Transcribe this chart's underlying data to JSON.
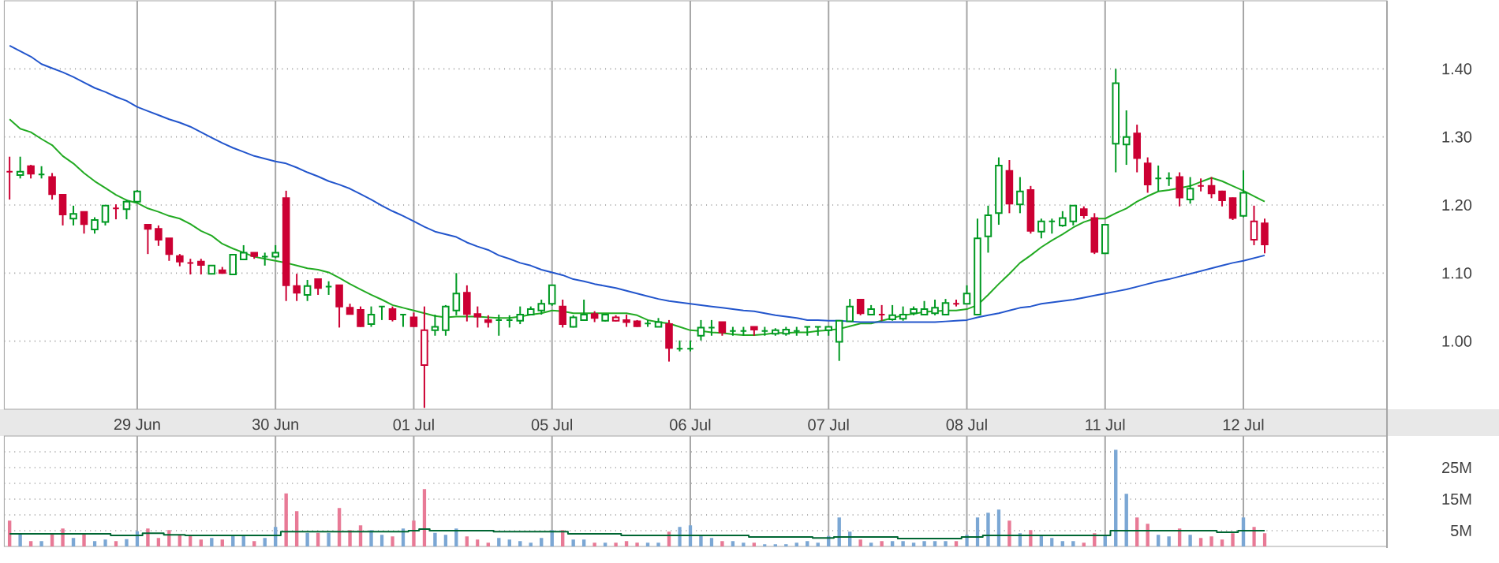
{
  "chart_data": [
    {
      "type": "candlestick",
      "categories": [
        null,
        null,
        null,
        null,
        null,
        null,
        null,
        null,
        null,
        null,
        null,
        null,
        "29 Jun",
        null,
        null,
        null,
        null,
        null,
        null,
        null,
        null,
        null,
        null,
        null,
        null,
        "30 Jun",
        null,
        null,
        null,
        null,
        null,
        null,
        null,
        null,
        null,
        null,
        null,
        null,
        "01 Jul",
        null,
        null,
        null,
        null,
        null,
        null,
        null,
        null,
        null,
        null,
        null,
        null,
        "05 Jul",
        null,
        null,
        null,
        null,
        null,
        null,
        null,
        null,
        null,
        null,
        null,
        null,
        "06 Jul",
        null,
        null,
        null,
        null,
        null,
        null,
        null,
        null,
        null,
        null,
        null,
        null,
        "07 Jul",
        null,
        null,
        null,
        null,
        null,
        null,
        null,
        null,
        null,
        null,
        null,
        null,
        "08 Jul",
        null,
        null,
        null,
        null,
        null,
        null,
        null,
        null,
        null,
        null,
        null,
        null,
        "11 Jul",
        null,
        null,
        null,
        null,
        null,
        null,
        null,
        null,
        null,
        null,
        null,
        null,
        "12 Jul",
        null,
        null,
        null,
        null,
        null,
        null,
        null,
        null,
        null,
        null,
        null,
        null,
        null
      ],
      "ohlc": [
        [
          1.249,
          1.271,
          1.208,
          1.249
        ],
        [
          1.244,
          1.271,
          1.239,
          1.249
        ],
        [
          1.257,
          1.259,
          1.239,
          1.246
        ],
        [
          1.245,
          1.257,
          1.239,
          1.245
        ],
        [
          1.241,
          1.247,
          1.208,
          1.216
        ],
        [
          1.215,
          1.216,
          1.17,
          1.186
        ],
        [
          1.18,
          1.199,
          1.17,
          1.187
        ],
        [
          1.19,
          1.19,
          1.158,
          1.172
        ],
        [
          1.164,
          1.182,
          1.158,
          1.178
        ],
        [
          1.175,
          1.199,
          1.17,
          1.199
        ],
        [
          1.195,
          1.201,
          1.179,
          1.195
        ],
        [
          1.194,
          1.208,
          1.179,
          1.205
        ],
        [
          1.205,
          1.222,
          1.203,
          1.22
        ],
        [
          1.171,
          1.171,
          1.128,
          1.165
        ],
        [
          1.165,
          1.17,
          1.14,
          1.149
        ],
        [
          1.151,
          1.151,
          1.118,
          1.128
        ],
        [
          1.125,
          1.128,
          1.11,
          1.117
        ],
        [
          1.115,
          1.121,
          1.098,
          1.115
        ],
        [
          1.117,
          1.121,
          1.098,
          1.112
        ],
        [
          1.099,
          1.111,
          1.098,
          1.111
        ],
        [
          1.104,
          1.109,
          1.099,
          1.1
        ],
        [
          1.098,
          1.127,
          1.098,
          1.127
        ],
        [
          1.12,
          1.141,
          1.119,
          1.13
        ],
        [
          1.13,
          1.13,
          1.121,
          1.125
        ],
        [
          1.124,
          1.13,
          1.111,
          1.124
        ],
        [
          1.124,
          1.141,
          1.122,
          1.13
        ],
        [
          1.21,
          1.221,
          1.059,
          1.082
        ],
        [
          1.081,
          1.099,
          1.059,
          1.071
        ],
        [
          1.068,
          1.09,
          1.059,
          1.081
        ],
        [
          1.091,
          1.091,
          1.068,
          1.078
        ],
        [
          1.08,
          1.088,
          1.068,
          1.08
        ],
        [
          1.082,
          1.082,
          1.02,
          1.051
        ],
        [
          1.049,
          1.055,
          1.039,
          1.04
        ],
        [
          1.046,
          1.051,
          1.021,
          1.022
        ],
        [
          1.025,
          1.051,
          1.021,
          1.039
        ],
        [
          1.051,
          1.051,
          1.031,
          1.051
        ],
        [
          1.047,
          1.051,
          1.029,
          1.032
        ],
        [
          1.039,
          1.039,
          1.021,
          1.039
        ],
        [
          1.035,
          1.042,
          1.021,
          1.022
        ],
        [
          0.965,
          1.051,
          0.902,
          1.016
        ],
        [
          1.016,
          1.039,
          1.008,
          1.021
        ],
        [
          1.016,
          1.053,
          1.008,
          1.051
        ],
        [
          1.045,
          1.1,
          1.038,
          1.07
        ],
        [
          1.071,
          1.082,
          1.029,
          1.04
        ],
        [
          1.04,
          1.051,
          1.02,
          1.036
        ],
        [
          1.031,
          1.038,
          1.02,
          1.028
        ],
        [
          1.031,
          1.039,
          1.008,
          1.031
        ],
        [
          1.031,
          1.038,
          1.02,
          1.031
        ],
        [
          1.03,
          1.051,
          1.025,
          1.039
        ],
        [
          1.039,
          1.051,
          1.038,
          1.047
        ],
        [
          1.045,
          1.061,
          1.039,
          1.055
        ],
        [
          1.055,
          1.082,
          1.052,
          1.082
        ],
        [
          1.051,
          1.061,
          1.02,
          1.025
        ],
        [
          1.021,
          1.038,
          1.02,
          1.035
        ],
        [
          1.031,
          1.061,
          1.03,
          1.039
        ],
        [
          1.04,
          1.044,
          1.028,
          1.034
        ],
        [
          1.03,
          1.039,
          1.029,
          1.039
        ],
        [
          1.03,
          1.038,
          1.029,
          1.035
        ],
        [
          1.031,
          1.039,
          1.021,
          1.028
        ],
        [
          1.029,
          1.031,
          1.021,
          1.022
        ],
        [
          1.026,
          1.031,
          1.021,
          1.026
        ],
        [
          1.021,
          1.034,
          1.021,
          1.028
        ],
        [
          1.025,
          1.031,
          0.97,
          0.99
        ],
        [
          0.989,
          1.001,
          0.985,
          0.989
        ],
        [
          0.989,
          1.001,
          0.985,
          0.989
        ],
        [
          1.008,
          1.031,
          1.001,
          1.02
        ],
        [
          1.02,
          1.031,
          1.008,
          1.02
        ],
        [
          1.028,
          1.028,
          1.008,
          1.013
        ],
        [
          1.015,
          1.021,
          1.008,
          1.015
        ],
        [
          1.015,
          1.021,
          1.008,
          1.015
        ],
        [
          1.021,
          1.021,
          1.008,
          1.017
        ],
        [
          1.015,
          1.021,
          1.008,
          1.015
        ],
        [
          1.011,
          1.019,
          1.008,
          1.016
        ],
        [
          1.011,
          1.021,
          1.008,
          1.017
        ],
        [
          1.015,
          1.021,
          1.008,
          1.015
        ],
        [
          1.021,
          1.021,
          1.008,
          1.021
        ],
        [
          1.021,
          1.021,
          1.008,
          1.021
        ],
        [
          1.016,
          1.022,
          1.008,
          1.021
        ],
        [
          0.999,
          1.03,
          0.971,
          1.03
        ],
        [
          1.029,
          1.062,
          1.029,
          1.051
        ],
        [
          1.061,
          1.061,
          1.038,
          1.041
        ],
        [
          1.039,
          1.053,
          1.038,
          1.047
        ],
        [
          1.039,
          1.053,
          1.03,
          1.039
        ],
        [
          1.032,
          1.053,
          1.03,
          1.038
        ],
        [
          1.033,
          1.051,
          1.03,
          1.039
        ],
        [
          1.041,
          1.051,
          1.038,
          1.047
        ],
        [
          1.039,
          1.059,
          1.038,
          1.047
        ],
        [
          1.041,
          1.061,
          1.038,
          1.049
        ],
        [
          1.039,
          1.062,
          1.038,
          1.056
        ],
        [
          1.055,
          1.061,
          1.051,
          1.055
        ],
        [
          1.055,
          1.082,
          1.055,
          1.07
        ],
        [
          1.039,
          1.18,
          1.039,
          1.151
        ],
        [
          1.154,
          1.199,
          1.13,
          1.185
        ],
        [
          1.188,
          1.27,
          1.171,
          1.258
        ],
        [
          1.25,
          1.266,
          1.188,
          1.202
        ],
        [
          1.201,
          1.241,
          1.188,
          1.22
        ],
        [
          1.222,
          1.228,
          1.158,
          1.162
        ],
        [
          1.161,
          1.18,
          1.151,
          1.176
        ],
        [
          1.176,
          1.18,
          1.158,
          1.176
        ],
        [
          1.17,
          1.191,
          1.168,
          1.181
        ],
        [
          1.176,
          1.199,
          1.17,
          1.199
        ],
        [
          1.194,
          1.198,
          1.18,
          1.185
        ],
        [
          1.181,
          1.188,
          1.128,
          1.131
        ],
        [
          1.129,
          1.171,
          1.128,
          1.171
        ],
        [
          1.29,
          1.4,
          1.248,
          1.379
        ],
        [
          1.289,
          1.339,
          1.259,
          1.3
        ],
        [
          1.305,
          1.318,
          1.248,
          1.269
        ],
        [
          1.261,
          1.27,
          1.218,
          1.23
        ],
        [
          1.239,
          1.258,
          1.22,
          1.239
        ],
        [
          1.239,
          1.248,
          1.228,
          1.239
        ],
        [
          1.241,
          1.248,
          1.198,
          1.211
        ],
        [
          1.208,
          1.241,
          1.202,
          1.224
        ],
        [
          1.228,
          1.239,
          1.22,
          1.228
        ],
        [
          1.228,
          1.241,
          1.21,
          1.217
        ],
        [
          1.22,
          1.221,
          1.198,
          1.207
        ],
        [
          1.21,
          1.211,
          1.178,
          1.181
        ],
        [
          1.184,
          1.251,
          1.182,
          1.218
        ],
        [
          1.149,
          1.199,
          1.141,
          1.176
        ],
        [
          1.173,
          1.18,
          1.129,
          1.142
        ],
        null,
        null,
        null,
        null,
        null,
        null,
        null,
        null,
        null,
        null,
        null
      ],
      "colors": [
        "#cc0033",
        "#009922",
        "#cc0033",
        "#009922",
        "#cc0033",
        "#cc0033",
        "#009922",
        "#cc0033",
        "#009922",
        "#009922",
        "#cc0033",
        "#009922",
        "#009922",
        "#cc0033",
        "#cc0033",
        "#cc0033",
        "#cc0033",
        "#cc0033",
        "#cc0033",
        "#009922",
        "#cc0033",
        "#009922",
        "#009922",
        "#cc0033",
        "#009922",
        "#009922",
        "#cc0033",
        "#cc0033",
        "#009922",
        "#cc0033",
        "#009922",
        "#cc0033",
        "#cc0033",
        "#cc0033",
        "#009922",
        "#009922",
        "#cc0033",
        "#009922",
        "#cc0033",
        "#cc0033",
        "#009922",
        "#009922",
        "#009922",
        "#cc0033",
        "#cc0033",
        "#cc0033",
        "#009922",
        "#009922",
        "#009922",
        "#009922",
        "#009922",
        "#009922",
        "#cc0033",
        "#009922",
        "#009922",
        "#cc0033",
        "#009922",
        "#cc0033",
        "#cc0033",
        "#cc0033",
        "#009922",
        "#009922",
        "#cc0033",
        "#009922",
        "#009922",
        "#009922",
        "#009922",
        "#cc0033",
        "#009922",
        "#009922",
        "#cc0033",
        "#009922",
        "#009922",
        "#009922",
        "#009922",
        "#009922",
        "#009922",
        "#009922",
        "#009922",
        "#009922",
        "#cc0033",
        "#009922",
        "#cc0033",
        "#009922",
        "#009922",
        "#009922",
        "#009922",
        "#009922",
        "#009922",
        "#cc0033",
        "#009922",
        "#009922",
        "#009922",
        "#009922",
        "#cc0033",
        "#009922",
        "#cc0033",
        "#009922",
        "#009922",
        "#009922",
        "#009922",
        "#cc0033",
        "#cc0033",
        "#009922",
        "#009922",
        "#009922",
        "#cc0033",
        "#cc0033",
        "#009922",
        "#009922",
        "#cc0033",
        "#009922",
        "#cc0033",
        "#cc0033",
        "#cc0033",
        "#cc0033",
        "#009922",
        "#cc0033",
        "#cc0033",
        null,
        null,
        null,
        null,
        null,
        null,
        null,
        null,
        null,
        null,
        null
      ],
      "series": [
        {
          "type": "line",
          "color": "#22aa22",
          "values": [
            1.326,
            1.312,
            1.307,
            1.297,
            1.288,
            1.272,
            1.261,
            1.247,
            1.235,
            1.225,
            1.215,
            1.207,
            1.203,
            1.195,
            1.19,
            1.184,
            1.18,
            1.172,
            1.162,
            1.155,
            1.143,
            1.136,
            1.13,
            1.124,
            1.121,
            1.118,
            1.115,
            1.111,
            1.107,
            1.105,
            1.101,
            1.093,
            1.084,
            1.076,
            1.068,
            1.061,
            1.053,
            1.049,
            1.045,
            1.041,
            1.037,
            1.035,
            1.036,
            1.036,
            1.036,
            1.035,
            1.034,
            1.034,
            1.036,
            1.039,
            1.041,
            1.045,
            1.044,
            1.041,
            1.041,
            1.041,
            1.041,
            1.041,
            1.041,
            1.038,
            1.031,
            1.028,
            1.026,
            1.021,
            1.016,
            1.015,
            1.013,
            1.012,
            1.01,
            1.009,
            1.009,
            1.01,
            1.012,
            1.012,
            1.013,
            1.013,
            1.015,
            1.016,
            1.018,
            1.022,
            1.026,
            1.026,
            1.03,
            1.034,
            1.038,
            1.04,
            1.043,
            1.044,
            1.045,
            1.045,
            1.047,
            1.053,
            1.068,
            1.084,
            1.099,
            1.115,
            1.126,
            1.138,
            1.148,
            1.157,
            1.167,
            1.175,
            1.18,
            1.18,
            1.188,
            1.195,
            1.205,
            1.213,
            1.22,
            1.222,
            1.225,
            1.228,
            1.234,
            1.24,
            1.235,
            1.228,
            1.221,
            1.213,
            1.205,
            null,
            null,
            null,
            null,
            null,
            null,
            null,
            null,
            null,
            null,
            null
          ]
        },
        {
          "type": "line",
          "color": "#2255cc",
          "values": [
            1.434,
            1.426,
            1.418,
            1.407,
            1.401,
            1.395,
            1.388,
            1.38,
            1.372,
            1.366,
            1.359,
            1.353,
            1.344,
            1.338,
            1.332,
            1.326,
            1.321,
            1.315,
            1.307,
            1.299,
            1.291,
            1.284,
            1.278,
            1.272,
            1.268,
            1.264,
            1.261,
            1.255,
            1.248,
            1.242,
            1.235,
            1.23,
            1.224,
            1.216,
            1.208,
            1.199,
            1.191,
            1.184,
            1.176,
            1.168,
            1.161,
            1.157,
            1.153,
            1.145,
            1.139,
            1.134,
            1.126,
            1.121,
            1.115,
            1.111,
            1.105,
            1.101,
            1.097,
            1.091,
            1.088,
            1.084,
            1.081,
            1.078,
            1.074,
            1.07,
            1.066,
            1.062,
            1.059,
            1.057,
            1.055,
            1.053,
            1.051,
            1.049,
            1.047,
            1.045,
            1.044,
            1.041,
            1.038,
            1.036,
            1.034,
            1.031,
            1.031,
            1.03,
            1.03,
            1.029,
            1.028,
            1.028,
            1.028,
            1.028,
            1.028,
            1.028,
            1.028,
            1.028,
            1.029,
            1.03,
            1.031,
            1.035,
            1.038,
            1.041,
            1.045,
            1.049,
            1.051,
            1.055,
            1.057,
            1.059,
            1.061,
            1.064,
            1.067,
            1.07,
            1.073,
            1.076,
            1.08,
            1.084,
            1.088,
            1.091,
            1.095,
            1.099,
            1.103,
            1.107,
            1.111,
            1.115,
            1.118,
            1.122,
            1.126,
            null,
            null,
            null,
            null,
            null,
            null,
            null,
            null,
            null,
            null,
            null
          ]
        }
      ],
      "ylim": [
        0.9,
        1.5
      ],
      "yticks": [
        {
          "value": 1.0,
          "label": "1.00"
        },
        {
          "value": 1.1,
          "label": "1.10"
        },
        {
          "value": 1.2,
          "label": "1.20"
        },
        {
          "value": 1.3,
          "label": "1.30"
        },
        {
          "value": 1.4,
          "label": "1.40"
        }
      ],
      "grid": true
    },
    {
      "type": "bar",
      "categories": [
        null,
        null,
        null,
        null,
        null,
        null,
        null,
        null,
        null,
        null,
        null,
        null,
        null,
        null,
        null,
        null,
        null,
        null,
        null,
        null,
        null,
        null,
        null,
        null,
        null,
        null,
        null,
        null,
        null,
        null,
        null,
        null,
        null,
        null,
        null,
        null,
        null,
        null,
        null,
        null,
        null,
        null,
        null,
        null,
        null,
        null,
        null,
        null,
        null,
        null,
        null,
        null,
        null,
        null,
        null,
        null,
        null,
        null,
        null,
        null,
        null,
        null,
        null,
        null,
        null,
        null,
        null,
        null,
        null,
        null,
        null,
        null,
        null,
        null,
        null,
        null,
        null,
        null,
        null,
        null,
        null,
        null,
        null,
        null,
        null,
        null,
        null,
        null,
        null,
        null,
        null,
        null,
        null,
        null,
        null,
        null,
        null,
        null,
        null,
        null,
        null,
        null,
        null,
        null,
        null,
        null,
        null,
        null,
        null,
        null,
        null,
        null,
        null,
        null,
        null,
        null,
        null,
        null,
        null,
        null,
        null,
        null,
        null,
        null,
        null,
        null,
        null,
        null,
        null,
        null
      ],
      "series": [
        {
          "type": "bar",
          "values": [
            8.2,
            4.0,
            1.7,
            1.7,
            4.0,
            5.7,
            2.7,
            4.0,
            1.7,
            2.2,
            1.7,
            2.3,
            4.8,
            5.7,
            2.7,
            5.2,
            3.7,
            3.7,
            2.2,
            2.7,
            2.2,
            3.3,
            3.3,
            1.7,
            2.7,
            6.2,
            16.8,
            11.2,
            4.3,
            4.3,
            4.3,
            12.2,
            5.2,
            6.7,
            5.2,
            3.7,
            3.2,
            5.7,
            8.2,
            18.2,
            4.3,
            3.7,
            5.7,
            3.2,
            2.2,
            1.2,
            2.7,
            2.2,
            1.7,
            1.2,
            2.7,
            5.2,
            5.2,
            2.2,
            2.2,
            1.2,
            1.2,
            1.2,
            1.7,
            1.2,
            1.2,
            1.2,
            4.7,
            6.2,
            6.7,
            3.3,
            2.7,
            1.7,
            1.7,
            1.2,
            1.2,
            0.7,
            0.7,
            0.7,
            1.2,
            1.7,
            1.2,
            3.3,
            9.2,
            4.7,
            2.2,
            1.2,
            1.7,
            1.7,
            1.7,
            1.2,
            1.7,
            1.7,
            1.7,
            1.7,
            3.7,
            9.2,
            10.7,
            11.7,
            8.2,
            4.2,
            5.2,
            3.7,
            2.7,
            1.7,
            1.7,
            1.2,
            4.2,
            3.7,
            30.7,
            16.7,
            9.2,
            7.2,
            3.7,
            3.2,
            5.7,
            3.7,
            2.7,
            3.2,
            2.2,
            4.2,
            9.2,
            6.2,
            4.2,
            null,
            null,
            null,
            null,
            null,
            null,
            null,
            null,
            null,
            null,
            null
          ],
          "colors": [
            "#e87a96",
            "#7ba7d4",
            "#e87a96",
            "#7ba7d4",
            "#e87a96",
            "#e87a96",
            "#7ba7d4",
            "#e87a96",
            "#7ba7d4",
            "#7ba7d4",
            "#e87a96",
            "#7ba7d4",
            "#7ba7d4",
            "#e87a96",
            "#e87a96",
            "#e87a96",
            "#e87a96",
            "#e87a96",
            "#e87a96",
            "#7ba7d4",
            "#e87a96",
            "#7ba7d4",
            "#7ba7d4",
            "#e87a96",
            "#7ba7d4",
            "#7ba7d4",
            "#e87a96",
            "#e87a96",
            "#7ba7d4",
            "#e87a96",
            "#7ba7d4",
            "#e87a96",
            "#e87a96",
            "#e87a96",
            "#7ba7d4",
            "#7ba7d4",
            "#e87a96",
            "#7ba7d4",
            "#e87a96",
            "#e87a96",
            "#7ba7d4",
            "#7ba7d4",
            "#7ba7d4",
            "#e87a96",
            "#e87a96",
            "#e87a96",
            "#7ba7d4",
            "#7ba7d4",
            "#7ba7d4",
            "#7ba7d4",
            "#7ba7d4",
            "#7ba7d4",
            "#e87a96",
            "#7ba7d4",
            "#7ba7d4",
            "#e87a96",
            "#7ba7d4",
            "#e87a96",
            "#e87a96",
            "#e87a96",
            "#7ba7d4",
            "#7ba7d4",
            "#e87a96",
            "#7ba7d4",
            "#7ba7d4",
            "#7ba7d4",
            "#7ba7d4",
            "#e87a96",
            "#7ba7d4",
            "#7ba7d4",
            "#e87a96",
            "#7ba7d4",
            "#7ba7d4",
            "#7ba7d4",
            "#7ba7d4",
            "#7ba7d4",
            "#7ba7d4",
            "#7ba7d4",
            "#7ba7d4",
            "#7ba7d4",
            "#e87a96",
            "#7ba7d4",
            "#e87a96",
            "#7ba7d4",
            "#7ba7d4",
            "#7ba7d4",
            "#7ba7d4",
            "#7ba7d4",
            "#7ba7d4",
            "#e87a96",
            "#7ba7d4",
            "#7ba7d4",
            "#7ba7d4",
            "#7ba7d4",
            "#e87a96",
            "#7ba7d4",
            "#e87a96",
            "#7ba7d4",
            "#7ba7d4",
            "#7ba7d4",
            "#7ba7d4",
            "#e87a96",
            "#e87a96",
            "#7ba7d4",
            "#7ba7d4",
            "#7ba7d4",
            "#e87a96",
            "#e87a96",
            "#7ba7d4",
            "#7ba7d4",
            "#e87a96",
            "#7ba7d4",
            "#e87a96",
            "#e87a96",
            "#e87a96",
            "#e87a96",
            "#7ba7d4",
            "#e87a96",
            "#e87a96",
            null,
            null,
            null,
            null,
            null,
            null,
            null,
            null,
            null,
            null,
            null
          ]
        },
        {
          "type": "step",
          "color": "#006633",
          "values": [
            4.0,
            4.0,
            4.0,
            4.0,
            4.0,
            4.0,
            4.0,
            4.0,
            4.0,
            4.0,
            3.5,
            3.5,
            3.5,
            4.2,
            4.2,
            3.7,
            3.7,
            3.5,
            3.5,
            3.5,
            3.5,
            3.5,
            3.5,
            3.5,
            3.5,
            3.5,
            4.7,
            4.7,
            4.7,
            4.7,
            4.7,
            4.7,
            4.7,
            4.7,
            4.7,
            4.7,
            4.7,
            4.7,
            5.0,
            5.5,
            5.0,
            5.0,
            5.0,
            5.0,
            5.0,
            5.0,
            4.7,
            4.7,
            4.7,
            4.7,
            4.7,
            4.7,
            4.7,
            4.0,
            4.0,
            4.0,
            4.0,
            4.0,
            3.5,
            3.5,
            3.5,
            3.5,
            3.5,
            3.5,
            3.5,
            3.5,
            3.5,
            3.5,
            3.5,
            3.5,
            3.0,
            3.0,
            3.0,
            3.0,
            3.0,
            3.0,
            2.7,
            2.7,
            3.0,
            3.0,
            3.0,
            3.0,
            3.0,
            3.0,
            2.5,
            2.5,
            2.5,
            2.5,
            2.5,
            2.5,
            3.0,
            3.0,
            3.5,
            3.5,
            3.5,
            3.5,
            3.5,
            3.5,
            3.5,
            3.5,
            3.5,
            3.5,
            3.5,
            3.5,
            5.0,
            5.0,
            5.0,
            5.0,
            5.0,
            5.0,
            5.0,
            5.0,
            5.0,
            5.0,
            4.5,
            4.5,
            5.0,
            5.0,
            5.0,
            null,
            null,
            null,
            null,
            null,
            null,
            null,
            null,
            null,
            null,
            null
          ]
        }
      ],
      "ylim": [
        0,
        35
      ],
      "yticks": [
        {
          "value": 5,
          "label": "5M"
        },
        {
          "value": 10,
          "label": null
        },
        {
          "value": 15,
          "label": "15M"
        },
        {
          "value": 20,
          "label": null
        },
        {
          "value": 25,
          "label": "25M"
        },
        {
          "value": 30,
          "label": null
        }
      ],
      "grid": true,
      "tick_labels": "y"
    }
  ]
}
